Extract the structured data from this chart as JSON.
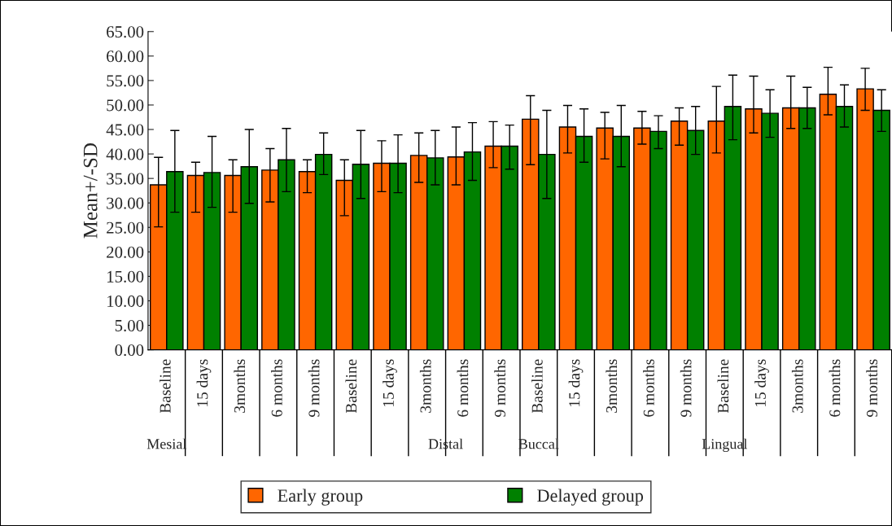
{
  "chart_data": {
    "type": "bar",
    "ylabel": "Mean+/-SD",
    "categories": [
      "Baseline",
      "15 days",
      "3months",
      "6 months",
      "9 months",
      "Baseline",
      "15 days",
      "3months",
      "6 months",
      "9 months",
      "Baseline",
      "15 days",
      "3months",
      "6 months",
      "9 months",
      "Baseline",
      "15 days",
      "3months",
      "6 months",
      "9 months"
    ],
    "series": [
      {
        "name": "Early group",
        "color": "#ff6600",
        "values": [
          33.7,
          35.6,
          35.6,
          36.7,
          36.4,
          34.6,
          38.1,
          39.7,
          39.4,
          41.6,
          47.1,
          45.5,
          45.3,
          45.3,
          46.7,
          46.7,
          49.2,
          49.4,
          52.2,
          53.3
        ],
        "errors": [
          [
            25.1,
            39.3
          ],
          [
            28.1,
            38.3
          ],
          [
            28.1,
            38.8
          ],
          [
            30.2,
            41.1
          ],
          [
            32.1,
            38.8
          ],
          [
            27.4,
            38.8
          ],
          [
            32.3,
            42.7
          ],
          [
            34.2,
            44.3
          ],
          [
            33.7,
            45.5
          ],
          [
            37.2,
            46.6
          ],
          [
            37.8,
            51.9
          ],
          [
            40.2,
            49.9
          ],
          [
            39.0,
            48.5
          ],
          [
            42.0,
            48.7
          ],
          [
            41.8,
            49.4
          ],
          [
            40.2,
            53.8
          ],
          [
            44.3,
            55.9
          ],
          [
            45.2,
            55.9
          ],
          [
            48.0,
            57.7
          ],
          [
            48.9,
            57.5
          ]
        ]
      },
      {
        "name": "Delayed group",
        "color": "#008000",
        "values": [
          36.4,
          36.2,
          37.4,
          38.8,
          39.9,
          37.9,
          38.1,
          39.2,
          40.4,
          41.6,
          39.9,
          43.6,
          43.6,
          44.6,
          44.8,
          49.7,
          48.3,
          49.4,
          49.7,
          48.9
        ],
        "errors": [
          [
            28.1,
            44.8
          ],
          [
            29.1,
            43.6
          ],
          [
            29.9,
            45.0
          ],
          [
            32.3,
            45.2
          ],
          [
            35.8,
            44.3
          ],
          [
            30.9,
            44.8
          ],
          [
            32.1,
            43.9
          ],
          [
            33.7,
            44.8
          ],
          [
            34.6,
            46.4
          ],
          [
            36.9,
            45.9
          ],
          [
            30.9,
            48.9
          ],
          [
            38.3,
            49.2
          ],
          [
            37.4,
            49.9
          ],
          [
            41.1,
            47.8
          ],
          [
            39.9,
            49.7
          ],
          [
            42.9,
            56.1
          ],
          [
            43.4,
            53.1
          ],
          [
            45.2,
            53.6
          ],
          [
            45.5,
            54.1
          ],
          [
            44.6,
            53.1
          ]
        ]
      }
    ],
    "ylim": [
      0,
      65
    ],
    "yticks": [
      {
        "value": 0,
        "label": "0.00"
      },
      {
        "value": 5,
        "label": "5.00"
      },
      {
        "value": 10,
        "label": "10.00"
      },
      {
        "value": 15,
        "label": "15.00"
      },
      {
        "value": 20,
        "label": "20.00"
      },
      {
        "value": 25,
        "label": "25.00"
      },
      {
        "value": 30,
        "label": "30.00"
      },
      {
        "value": 35,
        "label": "35.00"
      },
      {
        "value": 40,
        "label": "40.00"
      },
      {
        "value": 45,
        "label": "45.00"
      },
      {
        "value": 50,
        "label": "50.00"
      },
      {
        "value": 55,
        "label": "55.00"
      },
      {
        "value": 60,
        "label": "60.00"
      },
      {
        "value": 65,
        "label": "65.00"
      }
    ],
    "annotations": [
      "Mesial",
      "Distal",
      "Buccal",
      "Lingual"
    ],
    "grid": false,
    "legend": "bottom"
  }
}
